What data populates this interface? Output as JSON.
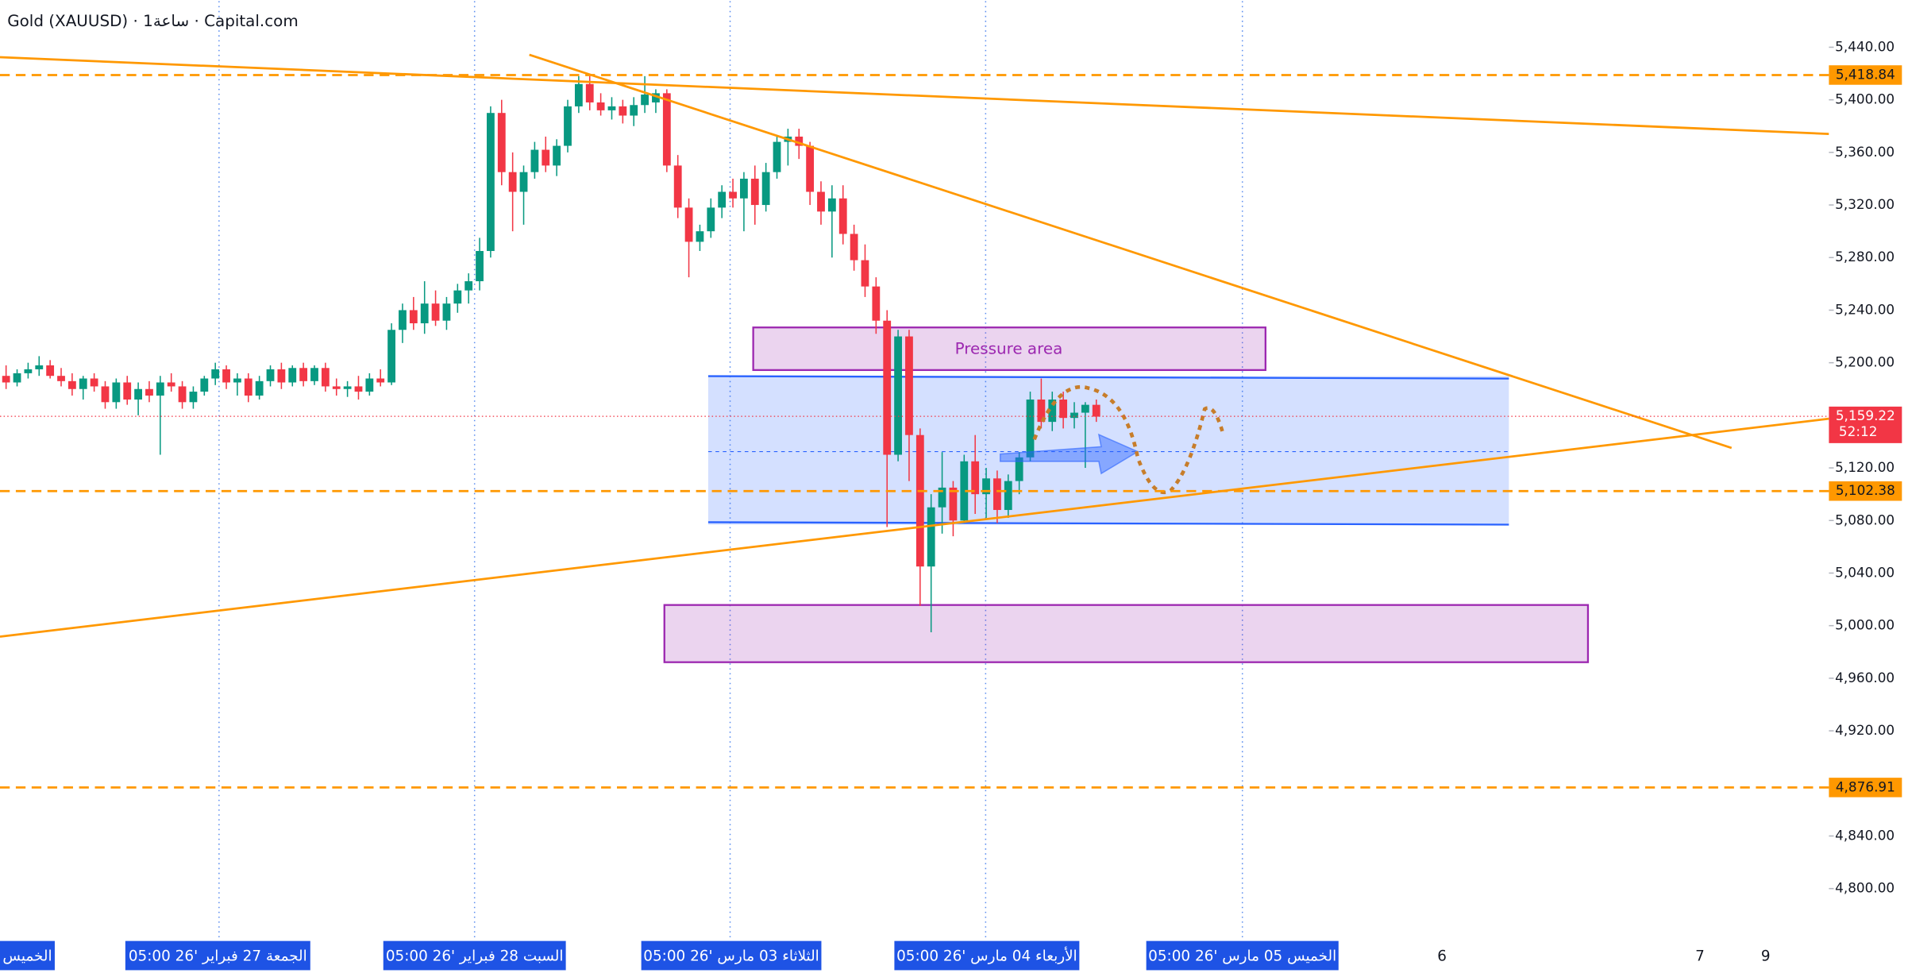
{
  "title": "Gold (XAUUSD) · 1ساعة · Capital.com",
  "chart_data": {
    "type": "candlestick",
    "open": [
      5190,
      5185,
      5192,
      5195,
      5198,
      5190,
      5186,
      5180,
      5188,
      5182,
      5170,
      5185,
      5172,
      5180,
      5175,
      5185,
      5182,
      5170,
      5178,
      5188,
      5195,
      5185,
      5188,
      5175,
      5186,
      5195,
      5185,
      5196,
      5186,
      5196,
      5182,
      5180,
      5182,
      5178,
      5188,
      5185,
      5225,
      5240,
      5230,
      5245,
      5232,
      5245,
      5255,
      5262,
      5285,
      5390,
      5345,
      5330,
      5345,
      5362,
      5350,
      5365,
      5395,
      5412,
      5398,
      5392,
      5395,
      5388,
      5396,
      5398,
      5405,
      5350,
      5318,
      5292,
      5300,
      5318,
      5330,
      5325,
      5340,
      5320,
      5345,
      5368,
      5372,
      5365,
      5330,
      5315,
      5325,
      5298,
      5278,
      5258,
      5232,
      5130,
      5220,
      5145,
      5045,
      5090,
      5105,
      5080,
      5125,
      5100,
      5112,
      5088,
      5110,
      5128,
      5172,
      5155,
      5172,
      5158,
      5162,
      5168
    ],
    "high": [
      5198,
      5195,
      5200,
      5205,
      5202,
      5196,
      5192,
      5190,
      5192,
      5186,
      5188,
      5190,
      5185,
      5186,
      5190,
      5192,
      5186,
      5182,
      5190,
      5200,
      5198,
      5192,
      5192,
      5190,
      5198,
      5200,
      5198,
      5200,
      5198,
      5200,
      5188,
      5186,
      5190,
      5192,
      5195,
      5230,
      5245,
      5250,
      5262,
      5255,
      5250,
      5260,
      5268,
      5295,
      5395,
      5400,
      5360,
      5350,
      5368,
      5372,
      5370,
      5400,
      5418,
      5418,
      5405,
      5402,
      5400,
      5402,
      5418,
      5408,
      5408,
      5358,
      5325,
      5305,
      5325,
      5335,
      5340,
      5345,
      5350,
      5352,
      5372,
      5378,
      5378,
      5368,
      5338,
      5335,
      5335,
      5305,
      5290,
      5265,
      5240,
      5225,
      5225,
      5150,
      5100,
      5132,
      5110,
      5130,
      5145,
      5120,
      5118,
      5115,
      5132,
      5178,
      5188,
      5178,
      5178,
      5170,
      5170,
      5172
    ],
    "low": [
      5180,
      5182,
      5188,
      5190,
      5188,
      5182,
      5175,
      5172,
      5178,
      5165,
      5165,
      5168,
      5160,
      5170,
      5130,
      5178,
      5165,
      5165,
      5175,
      5183,
      5180,
      5175,
      5170,
      5172,
      5182,
      5180,
      5182,
      5182,
      5183,
      5178,
      5175,
      5174,
      5172,
      5175,
      5182,
      5183,
      5215,
      5225,
      5222,
      5228,
      5225,
      5238,
      5245,
      5255,
      5280,
      5335,
      5300,
      5305,
      5340,
      5345,
      5342,
      5360,
      5390,
      5392,
      5388,
      5385,
      5382,
      5380,
      5390,
      5390,
      5345,
      5310,
      5265,
      5285,
      5295,
      5310,
      5318,
      5300,
      5305,
      5315,
      5340,
      5350,
      5355,
      5320,
      5305,
      5280,
      5290,
      5270,
      5250,
      5222,
      5075,
      5125,
      5110,
      5015,
      4995,
      5070,
      5068,
      5078,
      5085,
      5082,
      5078,
      5082,
      5100,
      5125,
      5150,
      5148,
      5150,
      5150,
      5120,
      5155
    ],
    "close": [
      5185,
      5192,
      5195,
      5198,
      5190,
      5186,
      5180,
      5188,
      5182,
      5170,
      5185,
      5172,
      5180,
      5175,
      5185,
      5182,
      5170,
      5178,
      5188,
      5195,
      5185,
      5188,
      5175,
      5186,
      5195,
      5185,
      5196,
      5186,
      5196,
      5182,
      5180,
      5182,
      5178,
      5188,
      5185,
      5225,
      5240,
      5230,
      5245,
      5232,
      5245,
      5255,
      5262,
      5285,
      5390,
      5345,
      5330,
      5345,
      5362,
      5350,
      5365,
      5395,
      5412,
      5398,
      5392,
      5395,
      5388,
      5396,
      5404,
      5405,
      5350,
      5318,
      5292,
      5300,
      5318,
      5330,
      5325,
      5340,
      5320,
      5345,
      5368,
      5372,
      5365,
      5330,
      5315,
      5325,
      5298,
      5278,
      5258,
      5232,
      5130,
      5220,
      5145,
      5045,
      5090,
      5105,
      5080,
      5125,
      5100,
      5112,
      5088,
      5110,
      5128,
      5172,
      5155,
      5172,
      5158,
      5162,
      5168,
      5159
    ],
    "colors": {
      "up": "#089981",
      "down": "#f23645",
      "level": "#ff9800"
    },
    "ylim": [
      4762,
      5475
    ],
    "yticks": [
      {
        "value": 5440,
        "label": "5,440.00"
      },
      {
        "value": 5400,
        "label": "5,400.00"
      },
      {
        "value": 5360,
        "label": "5,360.00"
      },
      {
        "value": 5320,
        "label": "5,320.00"
      },
      {
        "value": 5280,
        "label": "5,280.00"
      },
      {
        "value": 5240,
        "label": "5,240.00"
      },
      {
        "value": 5200,
        "label": "5,200.00"
      },
      {
        "value": 5120,
        "label": "5,120.00"
      },
      {
        "value": 5080,
        "label": "5,080.00"
      },
      {
        "value": 5040,
        "label": "5,040.00"
      },
      {
        "value": 5000,
        "label": "5,000.00"
      },
      {
        "value": 4960,
        "label": "4,960.00"
      },
      {
        "value": 4920,
        "label": "4,920.00"
      },
      {
        "value": 4840,
        "label": "4,840.00"
      },
      {
        "value": 4800,
        "label": "4,800.00"
      }
    ],
    "levels": [
      {
        "value": 5418.84,
        "label": "5,418.84"
      },
      {
        "value": 5102.38,
        "label": "5,102.38"
      },
      {
        "value": 4876.91,
        "label": "4,876.91"
      }
    ],
    "last_price": {
      "value": 5159.22,
      "label": "5,159.22"
    },
    "countdown": "52:12",
    "annotation": "Pressure area",
    "x_labels": [
      "الخميس",
      "الجمعة 27 فبراير '26  05:00",
      "السبت 28 فبراير '26  05:00",
      "الثلاثاء 03 مارس '26  05:00",
      "الأربعاء 04 مارس '26  05:00",
      "الخميس 05 مارس '26  05:00",
      "6",
      "7",
      "9"
    ]
  }
}
